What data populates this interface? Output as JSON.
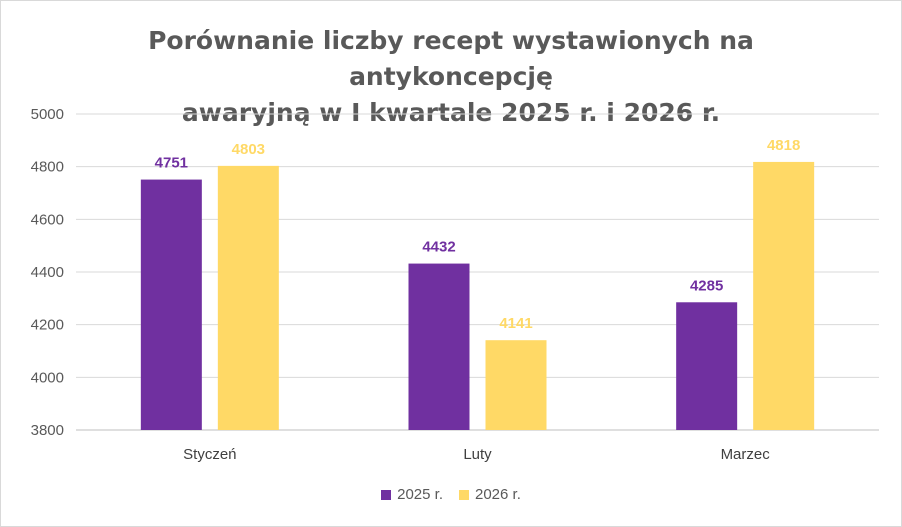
{
  "chart_data": {
    "type": "bar",
    "title": "Porównanie liczby recept wystawionych na antykoncepcję awaryjną w I kwartale 2025 r. i 2026 r.",
    "title_line1": "Porównanie liczby recept wystawionych na antykoncepcję",
    "title_line2": "awaryjną w I kwartale 2025 r. i 2026 r.",
    "categories": [
      "Styczeń",
      "Luty",
      "Marzec"
    ],
    "series": [
      {
        "name": "2025 r.",
        "values": [
          4751,
          4432,
          4285
        ],
        "color": "#7030a0"
      },
      {
        "name": "2026 r.",
        "values": [
          4803,
          4141,
          4818
        ],
        "color": "#ffd966"
      }
    ],
    "ylim": [
      3800,
      5000
    ],
    "yticks": [
      3800,
      4000,
      4200,
      4400,
      4600,
      4800,
      5000
    ],
    "xlabel": "",
    "ylabel": "",
    "grid": true,
    "legend_position": "bottom"
  }
}
